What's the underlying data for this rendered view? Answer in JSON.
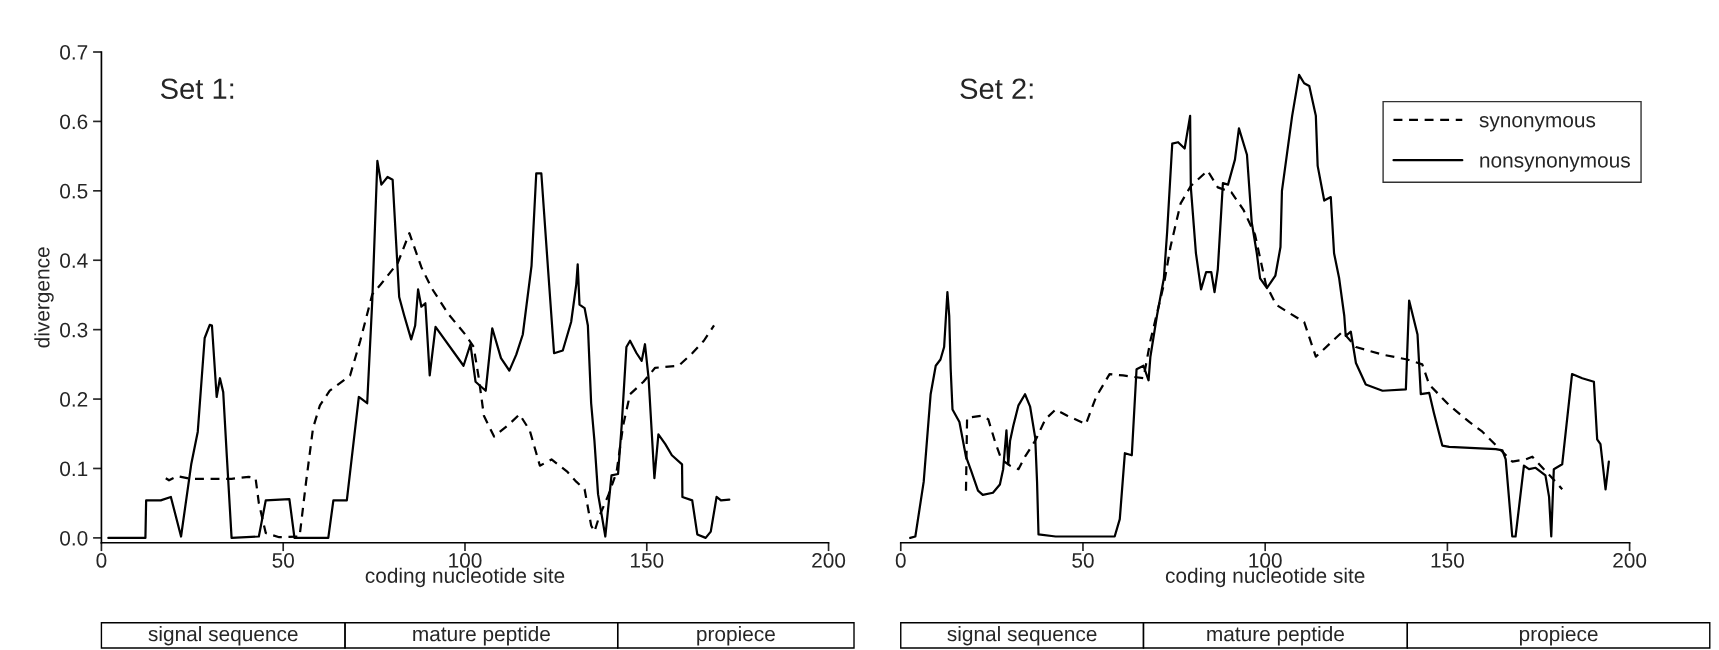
{
  "chart_data": [
    {
      "type": "line",
      "title": "Set 1:",
      "xlabel": "coding nucleotide site",
      "ylabel": "divergence",
      "xlim": [
        0,
        200
      ],
      "xticks": [
        0,
        50,
        100,
        150,
        200
      ],
      "ylim": [
        -0.007,
        0.7
      ],
      "yticks": [
        {
          "value": 0,
          "label": "0.0"
        },
        {
          "value": 0.1,
          "label": "0.1"
        },
        {
          "value": 0.2,
          "label": "0.2"
        },
        {
          "value": 0.3,
          "label": "0.3"
        },
        {
          "value": 0.4,
          "label": "0.4"
        },
        {
          "value": 0.5,
          "label": "0.5"
        },
        {
          "value": 0.6,
          "label": "0.6"
        },
        {
          "value": 0.7,
          "label": "0.7"
        }
      ],
      "grid": false,
      "legend": false,
      "annotations": [
        "signal sequence",
        "mature peptide",
        "propiece"
      ],
      "series": [
        {
          "color": "#000000",
          "line_style": "dashed",
          "x": [
            17.7,
            18.6,
            20.9,
            24.7,
            35.8,
            40.5,
            42.4,
            43.3,
            45.2,
            48.9,
            54.5,
            56.3,
            58.2,
            60.1,
            62.8,
            68.4,
            71.2,
            74.5,
            76.8,
            81.5,
            84.7,
            88,
            90.8,
            95.5,
            100.1,
            102.4,
            103.8,
            105.2,
            108,
            112.2,
            115,
            117.8,
            120.6,
            123.8,
            128.2,
            130.6,
            132.9,
            134.7,
            135.6,
            137,
            139.4,
            141.7,
            143.5,
            145.4,
            149.1,
            152.3,
            158.8,
            162.5,
            165.7,
            168.5
          ],
          "values": [
            0.086,
            0.083,
            0.089,
            0.085,
            0.085,
            0.088,
            0.086,
            0.05,
            0.007,
            0.001,
            0.002,
            0.081,
            0.158,
            0.191,
            0.212,
            0.234,
            0.284,
            0.351,
            0.365,
            0.396,
            0.439,
            0.39,
            0.36,
            0.322,
            0.293,
            0.275,
            0.23,
            0.176,
            0.146,
            0.164,
            0.178,
            0.155,
            0.104,
            0.113,
            0.095,
            0.081,
            0.07,
            0.018,
            0.009,
            0.032,
            0.061,
            0.095,
            0.162,
            0.207,
            0.225,
            0.245,
            0.248,
            0.266,
            0.284,
            0.306
          ]
        },
        {
          "color": "#000000",
          "line_style": "solid",
          "x": [
            1.9,
            12.1,
            12.3,
            16.3,
            19.1,
            21.9,
            24.7,
            26.5,
            28.4,
            29.8,
            30.4,
            31.7,
            32.6,
            33.5,
            34.5,
            35.8,
            43.3,
            45.2,
            51.7,
            53.1,
            62.4,
            63.8,
            67.5,
            70.8,
            73.1,
            74.5,
            75.9,
            77,
            78.7,
            80.1,
            81.9,
            83.3,
            85.2,
            86.3,
            87.1,
            88,
            89.1,
            90.3,
            91.9,
            99.6,
            101.5,
            102.9,
            105.7,
            107.5,
            109.9,
            112.2,
            114.1,
            115.9,
            118.3,
            119.6,
            121,
            122.9,
            124.5,
            126.9,
            129.2,
            130.6,
            131,
            131.5,
            132.9,
            133.8,
            134.7,
            135.6,
            136.6,
            137.5,
            138.6,
            140.3,
            142.1,
            143.1,
            144.4,
            145.4,
            147.2,
            148.6,
            149.5,
            150.5,
            152.1,
            153.2,
            155.1,
            156.9,
            159.7,
            159.8,
            162.5,
            163.9,
            166.2,
            167.6,
            169.2,
            170.4,
            172.7
          ],
          "values": [
            0,
            0,
            0.054,
            0.054,
            0.059,
            0.002,
            0.106,
            0.153,
            0.288,
            0.307,
            0.306,
            0.203,
            0.23,
            0.21,
            0.117,
            0,
            0.002,
            0.054,
            0.056,
            0,
            0,
            0.054,
            0.054,
            0.203,
            0.194,
            0.342,
            0.543,
            0.509,
            0.52,
            0.516,
            0.347,
            0.32,
            0.286,
            0.306,
            0.358,
            0.333,
            0.338,
            0.234,
            0.304,
            0.248,
            0.279,
            0.225,
            0.212,
            0.302,
            0.259,
            0.241,
            0.264,
            0.293,
            0.392,
            0.525,
            0.525,
            0.383,
            0.266,
            0.27,
            0.311,
            0.365,
            0.394,
            0.336,
            0.331,
            0.306,
            0.194,
            0.14,
            0.063,
            0.036,
            0.002,
            0.09,
            0.092,
            0.162,
            0.275,
            0.284,
            0.266,
            0.255,
            0.279,
            0.23,
            0.086,
            0.149,
            0.135,
            0.119,
            0.106,
            0.059,
            0.054,
            0.005,
            0,
            0.009,
            0.059,
            0.054,
            0.055
          ]
        }
      ]
    },
    {
      "type": "line",
      "title": "Set 2:",
      "xlabel": "coding nucleotide site",
      "xlim": [
        0,
        200
      ],
      "xticks": [
        0,
        50,
        100,
        150,
        200
      ],
      "ylim": [
        -0.007,
        0.7
      ],
      "tick_labels": "x",
      "grid": false,
      "legend": "top right",
      "annotations": [
        "signal sequence",
        "mature peptide",
        "propiece"
      ],
      "series": [
        {
          "name": "synonymous",
          "color": "#000000",
          "line_style": "dashed",
          "x": [
            17.9,
            18.2,
            22.1,
            24,
            25.8,
            27.6,
            30,
            32.3,
            34.1,
            36.9,
            39.7,
            42.5,
            45.7,
            50.8,
            53.6,
            57.3,
            61,
            66.6,
            68.5,
            72.2,
            74,
            76.8,
            79.6,
            84.2,
            87,
            90.7,
            94,
            97.2,
            100.2,
            103,
            106.6,
            110.7,
            113.9,
            121.2,
            124.9,
            132.2,
            139,
            143.1,
            145,
            150.5,
            156,
            159.6,
            165.1,
            167.8,
            171.5,
            173.3,
            176.1,
            178.8,
            181.5
          ],
          "values": [
            0.068,
            0.173,
            0.176,
            0.171,
            0.14,
            0.113,
            0.104,
            0.099,
            0.117,
            0.14,
            0.171,
            0.185,
            0.176,
            0.164,
            0.203,
            0.236,
            0.234,
            0.23,
            0.284,
            0.365,
            0.419,
            0.482,
            0.507,
            0.529,
            0.505,
            0.498,
            0.473,
            0.437,
            0.365,
            0.336,
            0.324,
            0.311,
            0.261,
            0.297,
            0.275,
            0.264,
            0.257,
            0.25,
            0.221,
            0.191,
            0.167,
            0.153,
            0.124,
            0.11,
            0.113,
            0.117,
            0.101,
            0.086,
            0.07
          ]
        },
        {
          "name": "nonsynonymous",
          "color": "#000000",
          "line_style": "solid",
          "x": [
            2.6,
            4,
            6.3,
            8.2,
            9.6,
            10.9,
            11.9,
            12.8,
            13.3,
            13.7,
            14.2,
            16.1,
            17.9,
            19.3,
            21.2,
            22.5,
            25.3,
            27.2,
            28.1,
            29,
            29.5,
            30,
            30.9,
            32.3,
            34.1,
            35.5,
            36.9,
            37.4,
            37.8,
            42.5,
            49,
            54.5,
            58.7,
            60.1,
            61.5,
            63.4,
            64.7,
            66.6,
            68,
            68.5,
            70.3,
            72.2,
            73.1,
            74.5,
            76.1,
            77.9,
            79.4,
            79.6,
            81,
            82.4,
            83.8,
            85.2,
            86.1,
            87,
            88.4,
            89.8,
            91.7,
            92.8,
            95,
            96.3,
            97.7,
            98.6,
            100.5,
            102.8,
            104.2,
            104.6,
            106,
            107.4,
            109.3,
            110.7,
            112.1,
            113.9,
            114.4,
            116.2,
            118,
            118.9,
            120.3,
            121.7,
            122.1,
            123.5,
            124.9,
            127.6,
            132.2,
            138.6,
            139.5,
            141.8,
            142.7,
            145,
            146.3,
            148.6,
            150.5,
            163.3,
            165.1,
            166,
            167.8,
            168.7,
            171,
            172.4,
            174.2,
            176.9,
            177.9,
            178.5,
            179.2,
            181.5,
            184.2,
            187,
            190.2,
            191.1,
            192,
            193.4,
            194.3
          ],
          "values": [
            0,
            0.002,
            0.081,
            0.207,
            0.248,
            0.257,
            0.275,
            0.354,
            0.32,
            0.243,
            0.185,
            0.167,
            0.117,
            0.097,
            0.068,
            0.062,
            0.065,
            0.077,
            0.099,
            0.155,
            0.106,
            0.14,
            0.162,
            0.191,
            0.207,
            0.189,
            0.144,
            0.081,
            0.005,
            0.002,
            0.002,
            0.002,
            0.002,
            0.027,
            0.122,
            0.119,
            0.243,
            0.248,
            0.227,
            0.261,
            0.32,
            0.374,
            0.441,
            0.568,
            0.57,
            0.561,
            0.608,
            0.505,
            0.41,
            0.358,
            0.383,
            0.383,
            0.354,
            0.387,
            0.511,
            0.509,
            0.545,
            0.59,
            0.552,
            0.455,
            0.41,
            0.374,
            0.36,
            0.378,
            0.419,
            0.5,
            0.554,
            0.608,
            0.667,
            0.655,
            0.651,
            0.608,
            0.536,
            0.486,
            0.491,
            0.41,
            0.374,
            0.32,
            0.291,
            0.297,
            0.252,
            0.221,
            0.212,
            0.214,
            0.342,
            0.293,
            0.207,
            0.209,
            0.18,
            0.133,
            0.131,
            0.128,
            0.126,
            0.113,
            0.002,
            0.002,
            0.104,
            0.099,
            0.101,
            0.09,
            0.059,
            0.002,
            0.099,
            0.106,
            0.236,
            0.23,
            0.225,
            0.142,
            0.135,
            0.07,
            0.11
          ]
        }
      ]
    }
  ]
}
